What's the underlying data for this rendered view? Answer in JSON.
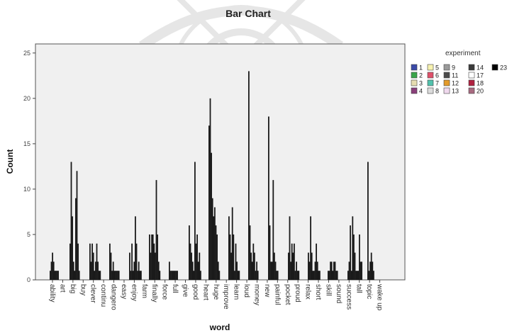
{
  "chart_data": {
    "type": "bar",
    "title": "Bar Chart",
    "xlabel": "word",
    "ylabel": "Count",
    "ylim": [
      0,
      26
    ],
    "yticks": [
      0,
      5,
      10,
      15,
      20,
      25
    ],
    "grid": false,
    "legend_title": "experiment",
    "legend_position": "right",
    "legend": [
      {
        "label": "1",
        "color": "#3b4aa8"
      },
      {
        "label": "2",
        "color": "#3aa54a"
      },
      {
        "label": "3",
        "color": "#e6ddb0"
      },
      {
        "label": "4",
        "color": "#8a3f7a"
      },
      {
        "label": "5",
        "color": "#f7f2b0"
      },
      {
        "label": "6",
        "color": "#e0506a"
      },
      {
        "label": "7",
        "color": "#52c2ad"
      },
      {
        "label": "8",
        "color": "#dcdcdc"
      },
      {
        "label": "9",
        "color": "#9a9a9a"
      },
      {
        "label": "11",
        "color": "#4b4b4b"
      },
      {
        "label": "12",
        "color": "#e39b2a"
      },
      {
        "label": "13",
        "color": "#f0d9ee"
      },
      {
        "label": "14",
        "color": "#3a3a3a"
      },
      {
        "label": "17",
        "color": "#ffffff"
      },
      {
        "label": "18",
        "color": "#b02040"
      },
      {
        "label": "20",
        "color": "#a86a80"
      },
      {
        "label": "23",
        "color": "#000000"
      }
    ],
    "categories": [
      "ability",
      "art",
      "big",
      "buy",
      "clever",
      "continu",
      "dangero",
      "easy",
      "enjoy",
      "farm",
      "finally",
      "force",
      "full",
      "give",
      "good",
      "heart",
      "huge",
      "improve",
      "learn",
      "loud",
      "money",
      "new",
      "painful",
      "pocket",
      "proud",
      "relax",
      "short",
      "skill",
      "sound",
      "success",
      "tall",
      "topic",
      "wake up"
    ],
    "groups": [
      [
        1,
        2,
        3,
        2,
        1,
        1,
        1,
        1
      ],
      [
        4,
        13,
        7,
        2,
        1,
        9,
        12,
        4,
        1
      ],
      [
        4,
        2,
        4,
        3,
        1,
        2,
        4,
        2,
        1,
        1
      ],
      [
        4,
        3,
        1,
        2,
        1,
        1,
        1,
        1,
        1
      ],
      [
        3,
        1,
        4,
        1,
        2,
        7,
        4,
        1,
        2,
        1,
        1
      ],
      [
        5,
        3,
        5,
        5,
        4,
        3,
        11,
        5,
        2,
        1
      ],
      [
        2,
        1,
        1,
        1,
        1,
        1,
        1,
        1
      ],
      [
        6,
        4,
        3,
        2,
        1,
        13,
        4,
        5,
        2,
        3,
        1
      ],
      [
        17,
        20,
        14,
        9,
        7,
        8,
        6,
        5,
        2,
        1
      ],
      [
        7,
        5,
        3,
        8,
        5,
        1,
        4,
        2,
        1,
        1
      ],
      [
        23,
        6,
        3,
        2,
        4,
        3,
        1,
        2,
        1
      ],
      [
        18,
        6,
        2,
        2,
        11,
        3,
        2,
        1,
        1
      ],
      [
        3,
        7,
        2,
        4,
        3,
        4,
        1,
        2,
        1,
        1
      ],
      [
        3,
        2,
        7,
        3,
        1,
        1,
        2,
        4,
        2,
        1,
        1
      ],
      [
        1,
        1,
        2,
        2,
        1,
        2,
        2,
        1,
        1
      ],
      [
        1,
        2,
        6,
        1,
        7,
        5,
        3,
        1,
        1,
        1,
        5,
        2,
        2
      ],
      [
        13,
        1,
        2,
        3,
        2,
        1
      ]
    ]
  }
}
